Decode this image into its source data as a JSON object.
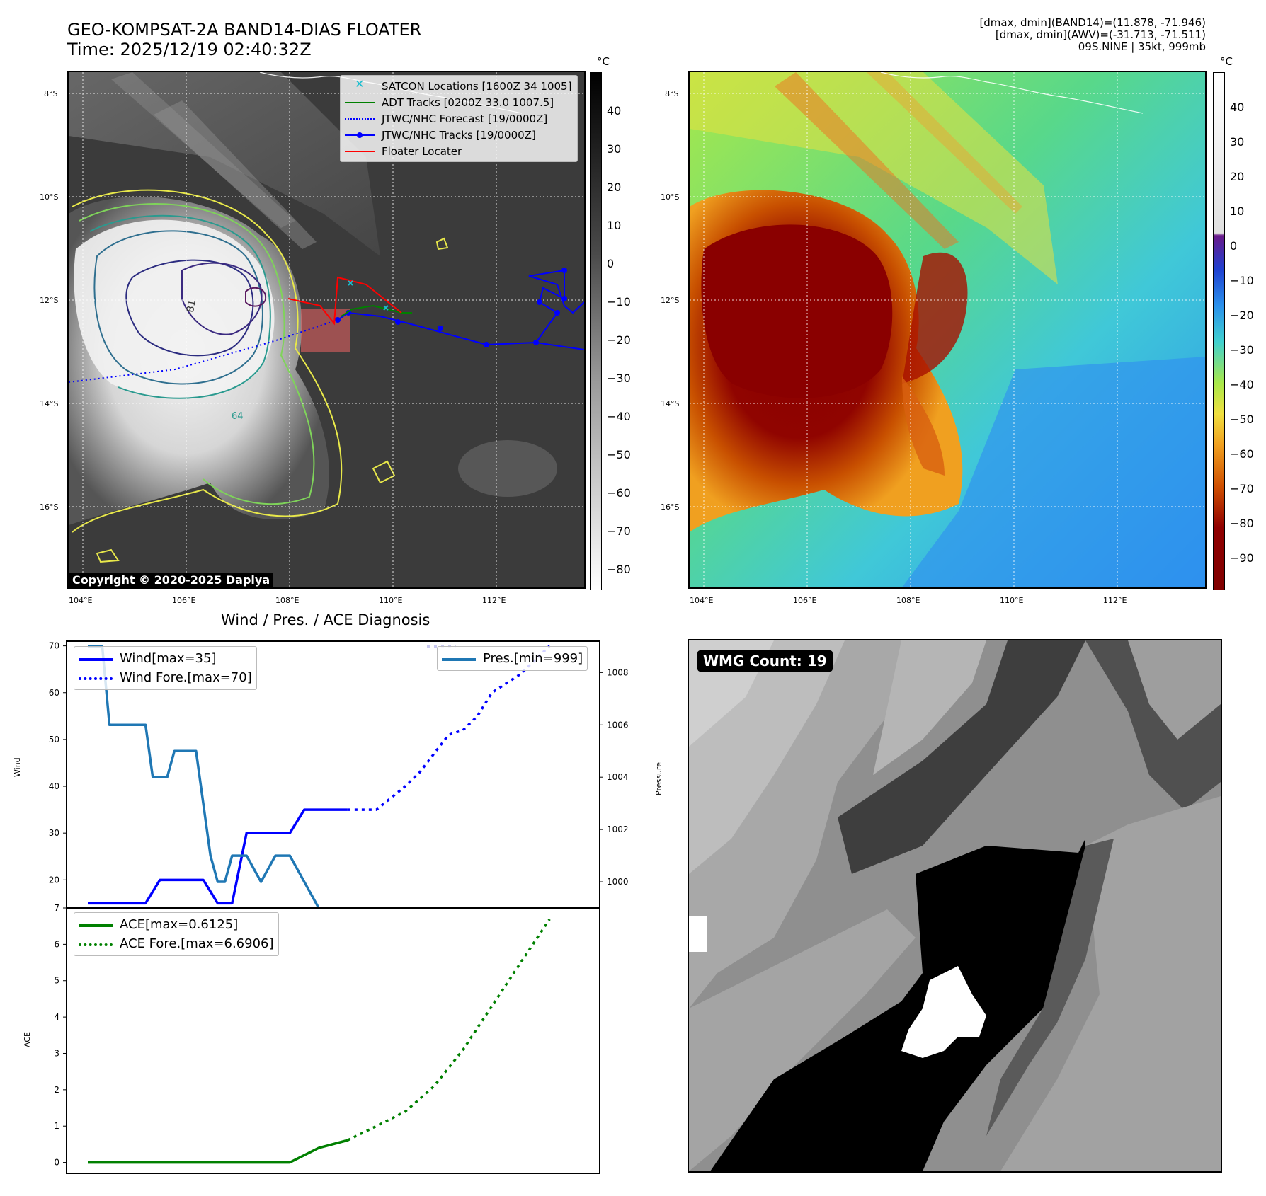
{
  "header": {
    "title_line1": "GEO-KOMPSAT-2A BAND14-DIAS FLOATER",
    "title_line2": "Time: 2025/12/19 02:40:32Z",
    "info_line1": "[dmax, dmin](BAND14)=(11.878, -71.946)",
    "info_line2": "[dmax, dmin](AWV)=(-31.713, -71.511)",
    "info_line3": "09S.NINE | 35kt, 999mb"
  },
  "map": {
    "lat_ticks": [
      "8°S",
      "10°S",
      "12°S",
      "14°S",
      "16°S"
    ],
    "lon_ticks": [
      "104°E",
      "106°E",
      "108°E",
      "110°E",
      "112°E"
    ],
    "unit": "°C",
    "contour_label_1": "-81",
    "contour_label_2": "64",
    "copyright": "Copyright © 2020-2025 Dapiya",
    "legend": [
      {
        "label": "SATCON Locations [1600Z 34 1005]",
        "color": "#17becf"
      },
      {
        "label": "ADT Tracks [0200Z 33.0 1007.5]",
        "color": "#008000"
      },
      {
        "label": "JTWC/NHC Forecast [19/0000Z]",
        "color": "#0000ff"
      },
      {
        "label": "JTWC/NHC Tracks [19/0000Z]",
        "color": "#0000ff"
      },
      {
        "label": "Floater Locater",
        "color": "#ff0000"
      }
    ]
  },
  "colorbar_gray": {
    "unit": "°C",
    "ticks": [
      "40",
      "30",
      "20",
      "10",
      "0",
      "−10",
      "−20",
      "−30",
      "−40",
      "−50",
      "−60",
      "−70",
      "−80"
    ]
  },
  "colorbar_color": {
    "unit": "°C",
    "ticks": [
      "40",
      "30",
      "20",
      "10",
      "0",
      "−10",
      "−20",
      "−30",
      "−40",
      "−50",
      "−60",
      "−70",
      "−80",
      "−90"
    ]
  },
  "wmg": {
    "badge": "WMG Count: 19"
  },
  "chart_data": [
    {
      "type": "line",
      "title": "Wind / Pres. / ACE Diagnosis",
      "ylabel": "Wind",
      "ylabel_right": "Pressure",
      "ylim": [
        14,
        71
      ],
      "ylim_right": [
        999,
        1009.2
      ],
      "y_ticks": [
        "70",
        "60",
        "50",
        "40",
        "30",
        "20"
      ],
      "y_ticks_right": [
        "1008",
        "1006",
        "1004",
        "1002",
        "1000"
      ],
      "series": [
        {
          "name": "Wind[max=35]",
          "color": "#0000ff",
          "style": "solid",
          "x": [
            0,
            4,
            5,
            8,
            9,
            10,
            11,
            14,
            15,
            18
          ],
          "values": [
            15,
            15,
            20,
            20,
            15,
            15,
            30,
            30,
            35,
            35
          ]
        },
        {
          "name": "Wind Fore.[max=70]",
          "color": "#0000ff",
          "style": "dotted",
          "x": [
            18,
            20,
            22,
            23,
            24,
            25,
            26,
            27,
            28,
            29,
            30,
            31,
            32
          ],
          "values": [
            35,
            35,
            40,
            43,
            47,
            51,
            52,
            55,
            60,
            62,
            64,
            67,
            70
          ]
        },
        {
          "name": "Pres.[min=999]",
          "color": "#1f77b4",
          "style": "solid",
          "axis": "right",
          "x": [
            0,
            1,
            1.5,
            4,
            4.5,
            5.5,
            6,
            7.5,
            8,
            8.5,
            9,
            9.5,
            10,
            10.5,
            11,
            12,
            13,
            14,
            15,
            16,
            17,
            18
          ],
          "values": [
            1009,
            1009,
            1006,
            1006,
            1004,
            1004,
            1005,
            1005,
            1003,
            1001,
            1000,
            1000,
            1001,
            1001,
            1001,
            1000,
            1001,
            1001,
            1000,
            999,
            999,
            999
          ]
        },
        {
          "name": "",
          "color": "#c8c8f0",
          "style": "dotted",
          "axis": "right",
          "x": [
            23.5,
            25.5
          ],
          "values": [
            1009,
            1009
          ]
        }
      ]
    },
    {
      "type": "line",
      "ylabel": "ACE",
      "ylim": [
        -0.3,
        7
      ],
      "y_ticks": [
        "7",
        "6",
        "5",
        "4",
        "3",
        "2",
        "1",
        "0"
      ],
      "series": [
        {
          "name": "ACE[max=0.6125]",
          "color": "#008000",
          "style": "solid",
          "x": [
            0,
            4,
            8,
            11,
            13,
            14,
            15,
            16,
            18
          ],
          "values": [
            0,
            0,
            0,
            0,
            0,
            0,
            0.2,
            0.4,
            0.61
          ]
        },
        {
          "name": "ACE Fore.[max=6.6906]",
          "color": "#008000",
          "style": "dotted",
          "x": [
            18,
            20,
            22,
            24,
            26,
            28,
            30,
            32
          ],
          "values": [
            0.61,
            1.0,
            1.4,
            2.1,
            3.1,
            4.3,
            5.5,
            6.69
          ]
        }
      ]
    }
  ]
}
